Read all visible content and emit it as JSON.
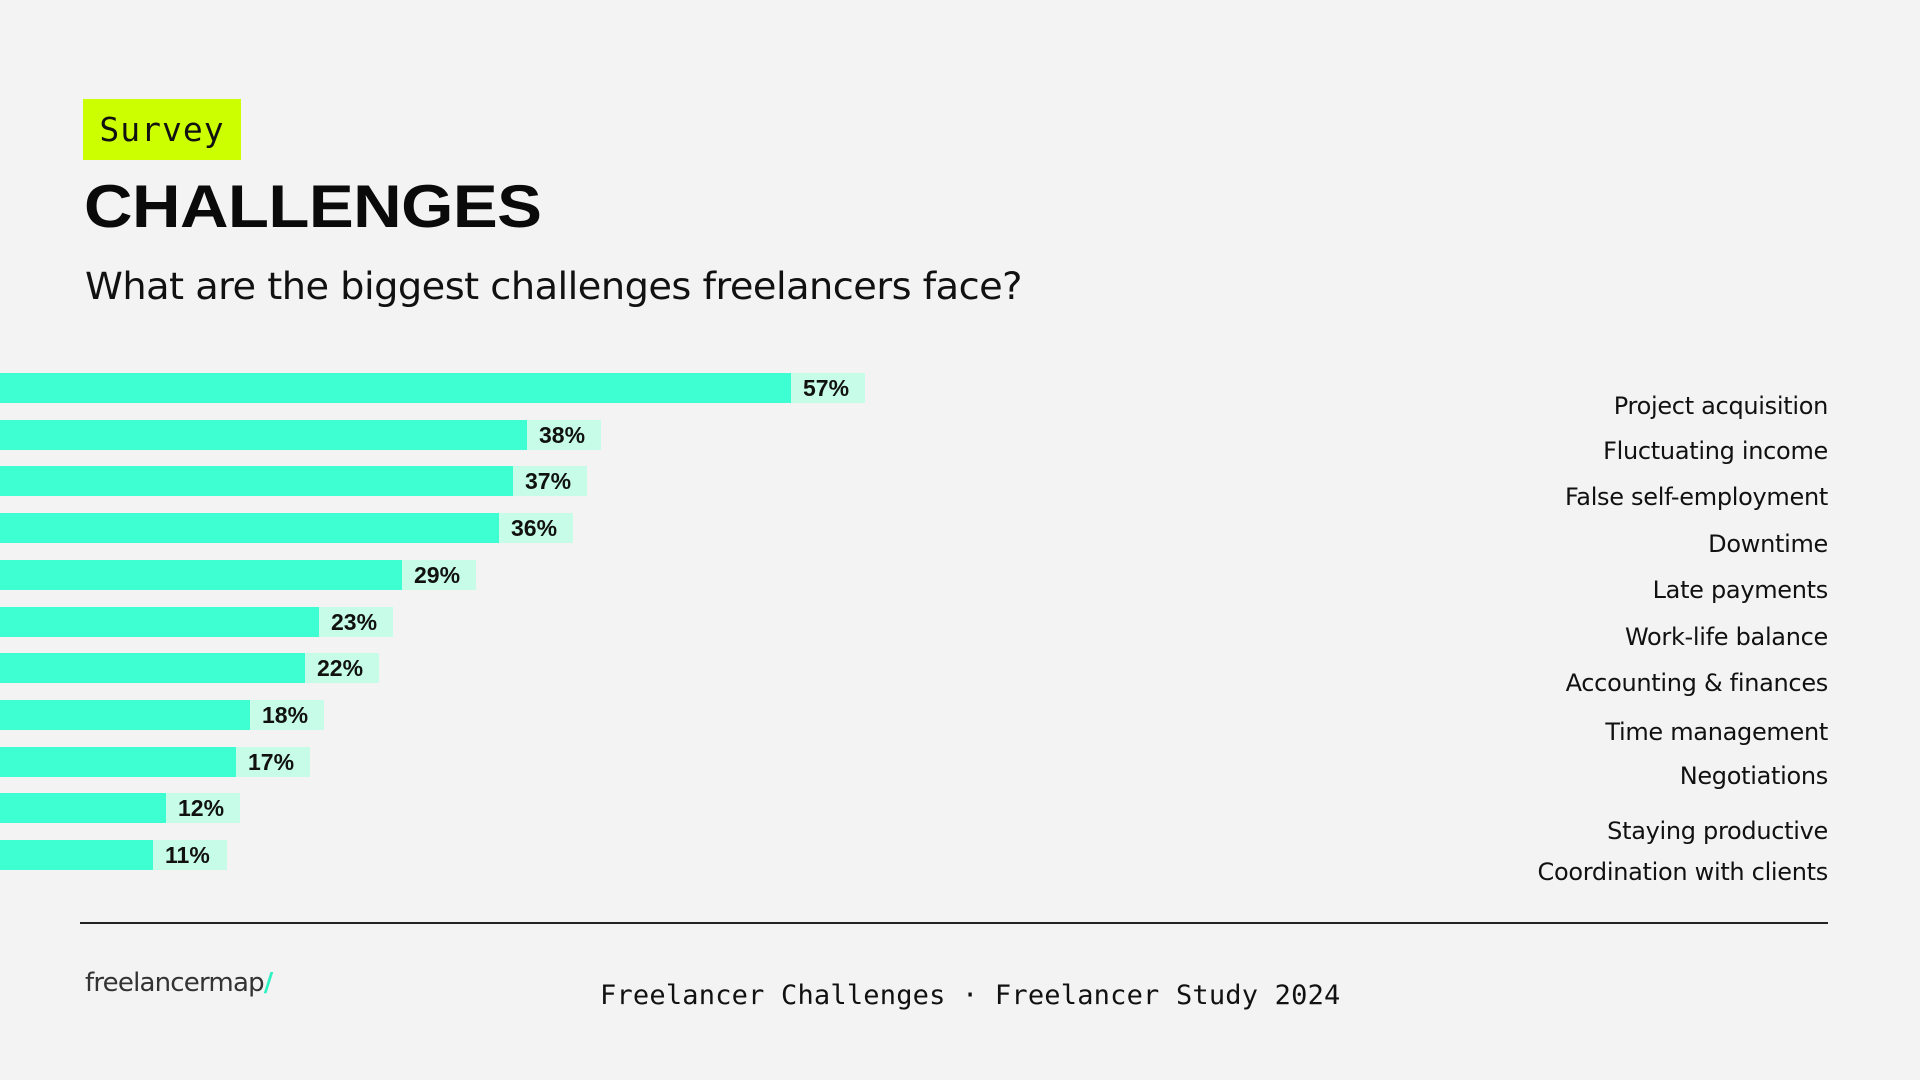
{
  "header": {
    "badge": "Survey",
    "title": "CHALLENGES",
    "subtitle": "What are the biggest challenges freelancers face?"
  },
  "colors": {
    "background": "#F3F3F3",
    "badge": "#CCFF00",
    "bar": "#3DFFD2",
    "value_box": "#C6FCE8",
    "logo_slash": "#2EF2C2"
  },
  "chart_data": {
    "type": "bar",
    "orientation": "horizontal",
    "title": "CHALLENGES",
    "subtitle": "What are the biggest challenges freelancers face?",
    "categories": [
      "Project acquisition",
      "Fluctuating income",
      "False self-employment",
      "Downtime",
      "Late payments",
      "Work-life balance",
      "Accounting & finances",
      "Time management",
      "Negotiations",
      "Staying productive",
      "Coordination with clients"
    ],
    "values": [
      57,
      38,
      37,
      36,
      29,
      23,
      22,
      18,
      17,
      12,
      11
    ],
    "value_labels": [
      "57%",
      "38%",
      "37%",
      "36%",
      "29%",
      "23%",
      "22%",
      "18%",
      "17%",
      "12%",
      "11%"
    ],
    "unit": "%",
    "xlabel": "",
    "ylabel": "",
    "grid": false,
    "legend": null
  },
  "footer": {
    "logo_text": "freelancermap",
    "logo_slash": "/",
    "caption": "Freelancer Challenges · Freelancer Study 2024"
  }
}
